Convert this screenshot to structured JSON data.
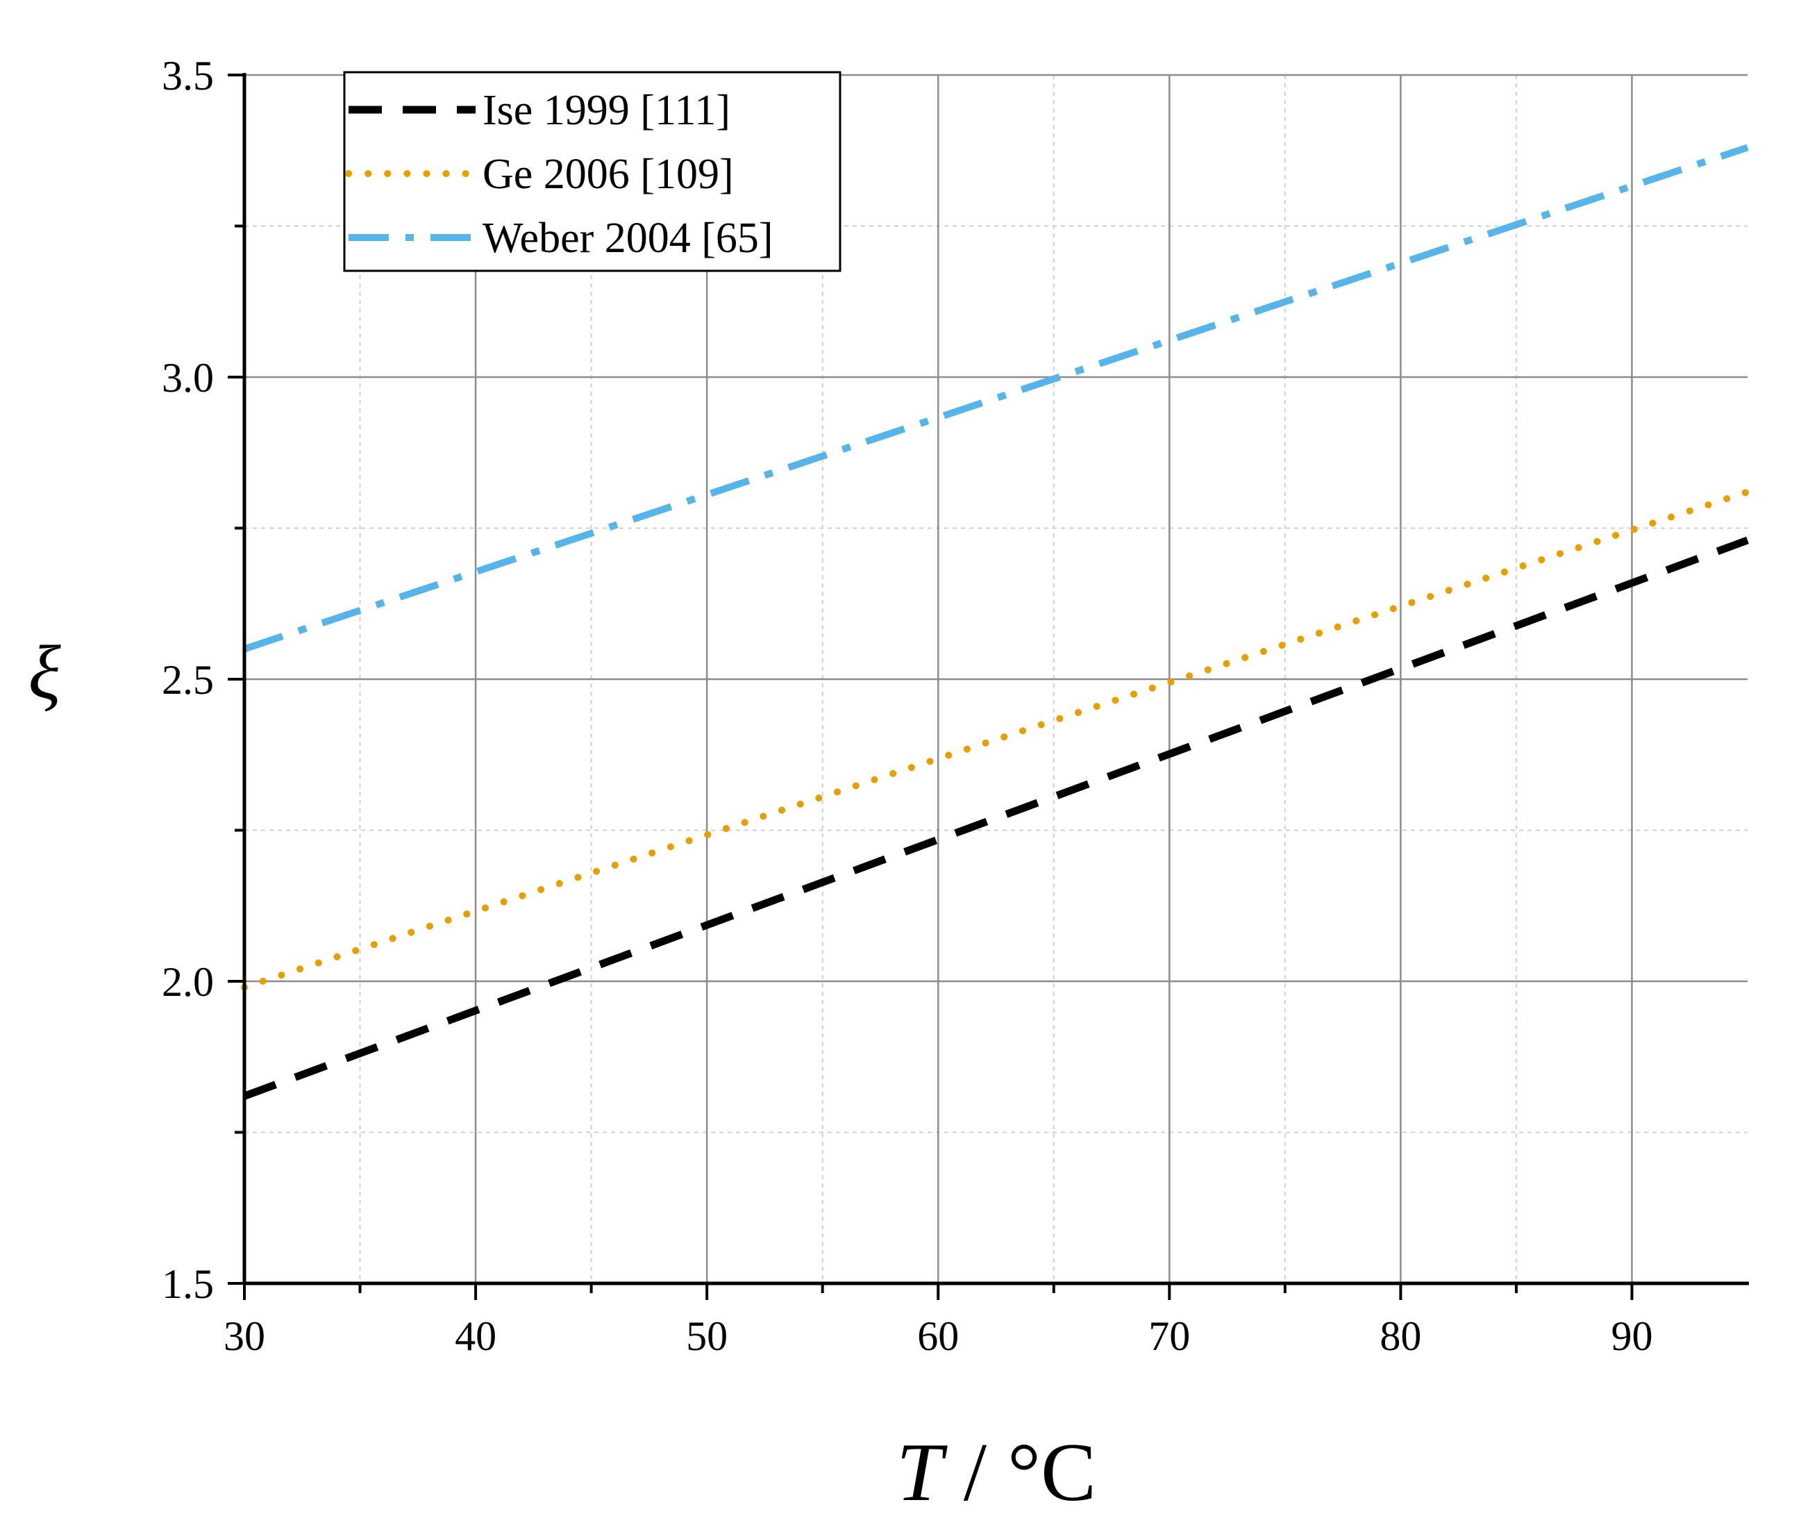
{
  "chart_data": {
    "type": "line",
    "title": "",
    "xlabel": {
      "symbol": "T",
      "unit": " / °C"
    },
    "ylabel": "ξ",
    "xlim": [
      30,
      95
    ],
    "ylim": [
      1.5,
      3.5
    ],
    "xticks": [
      30,
      40,
      50,
      60,
      70,
      80,
      90
    ],
    "xtick_labels": [
      "30",
      "40",
      "50",
      "60",
      "70",
      "80",
      "90"
    ],
    "xminor": [
      35,
      45,
      55,
      65,
      75,
      85
    ],
    "yticks": [
      1.5,
      2.0,
      2.5,
      3.0,
      3.5
    ],
    "ytick_labels": [
      "1.5",
      "2.0",
      "2.5",
      "3.0",
      "3.5"
    ],
    "yminor": [
      1.75,
      2.25,
      2.75,
      3.25
    ],
    "grid": true,
    "legend_position": "top-left",
    "series": [
      {
        "name": "Ise 1999 [111]",
        "style": "dash",
        "color": "#000000",
        "x": [
          30,
          95
        ],
        "y": [
          1.81,
          2.73
        ]
      },
      {
        "name": "Ge 2006 [109]",
        "style": "dot",
        "color": "#E69F00",
        "x": [
          30,
          95
        ],
        "y": [
          1.99,
          2.81
        ]
      },
      {
        "name": "Weber 2004 [65]",
        "style": "dash-dot",
        "color": "#56B4E9",
        "x": [
          30,
          95
        ],
        "y": [
          2.55,
          3.38
        ]
      }
    ]
  }
}
